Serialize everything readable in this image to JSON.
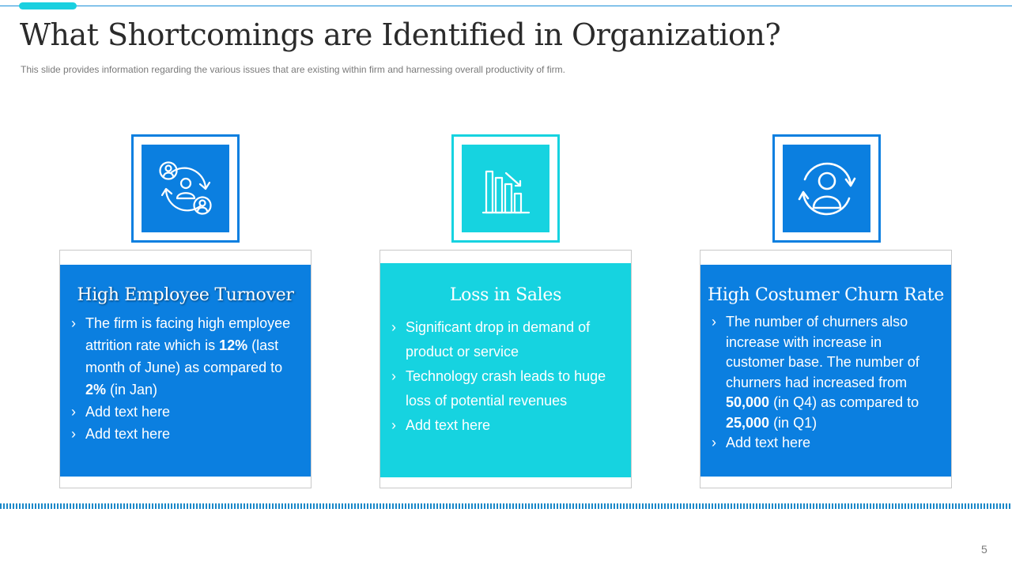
{
  "slide": {
    "title": "What Shortcomings are Identified in Organization?",
    "subtitle": "This slide provides information regarding the various issues that are existing within firm and harnessing overall productivity of firm.",
    "page_number": "5"
  },
  "colors": {
    "blue": "#0b7fe0",
    "cyan": "#16d3e0",
    "accent": "#19d0e0",
    "title_text": "#2b2b2b"
  },
  "cards": [
    {
      "icon": "employee-turnover-icon",
      "title": "High Employee Turnover",
      "bullets": [
        {
          "p1": "The firm is facing high employee attrition rate which is ",
          "b1": "12%",
          "p2": " (last month of June) as compared to ",
          "b2": "2%",
          "p3": "  (in Jan)"
        },
        {
          "text": "Add text here"
        },
        {
          "text": "Add text here"
        }
      ]
    },
    {
      "icon": "declining-bar-chart-icon",
      "title": "Loss in Sales",
      "bullets": [
        {
          "text": "Significant drop in demand of product or service"
        },
        {
          "text": "Technology crash leads to huge loss of potential revenues"
        },
        {
          "text": "Add text here"
        }
      ]
    },
    {
      "icon": "customer-churn-icon",
      "title": "High Costumer Churn Rate",
      "bullets": [
        {
          "p1": "The number of churners also increase with  increase in customer base. The number of churners had increased from ",
          "b1": "50,000",
          "p2": " (in Q4) as compared to ",
          "b2": "25,000",
          "p3": " (in Q1)"
        },
        {
          "text": "Add text here"
        }
      ]
    }
  ]
}
